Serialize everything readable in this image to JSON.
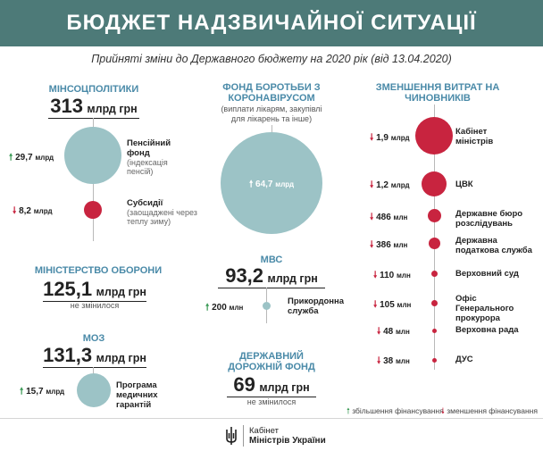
{
  "header": {
    "title": "БЮДЖЕТ НАДЗВИЧАЙНОЇ СИТУАЦІЇ",
    "subtitle": "Прийняті зміни до Державного бюджету на 2020 рік (від 13.04.2020)"
  },
  "minsoc": {
    "title": "МІНСОЦПОЛІТИКИ",
    "amount": "313",
    "unit": "млрд грн",
    "items": [
      {
        "value": "29,7",
        "unit": "млрд",
        "direction": "up",
        "label": "Пенсійний фонд",
        "note": "(індексація пенсій)"
      },
      {
        "value": "8,2",
        "unit": "млрд",
        "direction": "down",
        "label": "Субсидії",
        "note": "(заощаджені через теплу зиму)"
      }
    ]
  },
  "defense": {
    "title": "МІНІСТЕРСТВО ОБОРОНИ",
    "amount": "125,1",
    "unit": "млрд грн",
    "note": "не змінилося"
  },
  "moz": {
    "title": "МОЗ",
    "amount": "131,3",
    "unit": "млрд грн",
    "items": [
      {
        "value": "15,7",
        "unit": "млрд",
        "direction": "up",
        "label": "Програма медичних гарантій"
      }
    ]
  },
  "covid": {
    "title": "ФОНД БОРОТЬБИ З КОРОНАВІРУСОМ",
    "note": "(виплати лікарям, закупівлі для лікарень та інше)",
    "value": "64,7",
    "unit": "млрд",
    "direction": "up"
  },
  "mvs": {
    "title": "МВС",
    "amount": "93,2",
    "unit": "млрд грн",
    "items": [
      {
        "value": "200",
        "unit": "млн",
        "direction": "up",
        "label": "Прикордонна служба"
      }
    ]
  },
  "road": {
    "title": "ДЕРЖАВНИЙ ДОРОЖНІЙ ФОНД",
    "amount": "69",
    "unit": "млрд грн",
    "note": "не змінилося"
  },
  "officials": {
    "title": "ЗМЕНШЕННЯ ВИТРАТ НА ЧИНОВНИКІВ",
    "items": [
      {
        "value": "1,9",
        "unit": "млрд",
        "direction": "down",
        "label": "Кабінет міністрів"
      },
      {
        "value": "1,2",
        "unit": "млрд",
        "direction": "down",
        "label": "ЦВК"
      },
      {
        "value": "486",
        "unit": "млн",
        "direction": "down",
        "label": "Державне бюро розслідувань"
      },
      {
        "value": "386",
        "unit": "млн",
        "direction": "down",
        "label": "Державна податкова служба"
      },
      {
        "value": "110",
        "unit": "млн",
        "direction": "down",
        "label": "Верховний суд"
      },
      {
        "value": "105",
        "unit": "млн",
        "direction": "down",
        "label": "Офіс Генерального прокурора"
      },
      {
        "value": "48",
        "unit": "млн",
        "direction": "down",
        "label": "Верховна рада"
      },
      {
        "value": "38",
        "unit": "млн",
        "direction": "down",
        "label": "ДУС"
      }
    ]
  },
  "legend": {
    "increase": "збільшення фінансування",
    "decrease": "зменшення фінансування"
  },
  "footer": {
    "logo_line1": "Кабінет",
    "logo_line2": "Міністрів України",
    "logo_icon": "trident-icon"
  },
  "colors": {
    "banner": "#4d7a78",
    "section_title": "#4a8aa8",
    "bubble": "#9cc3c6",
    "decrease": "#c8243f",
    "increase": "#3a9a55"
  }
}
